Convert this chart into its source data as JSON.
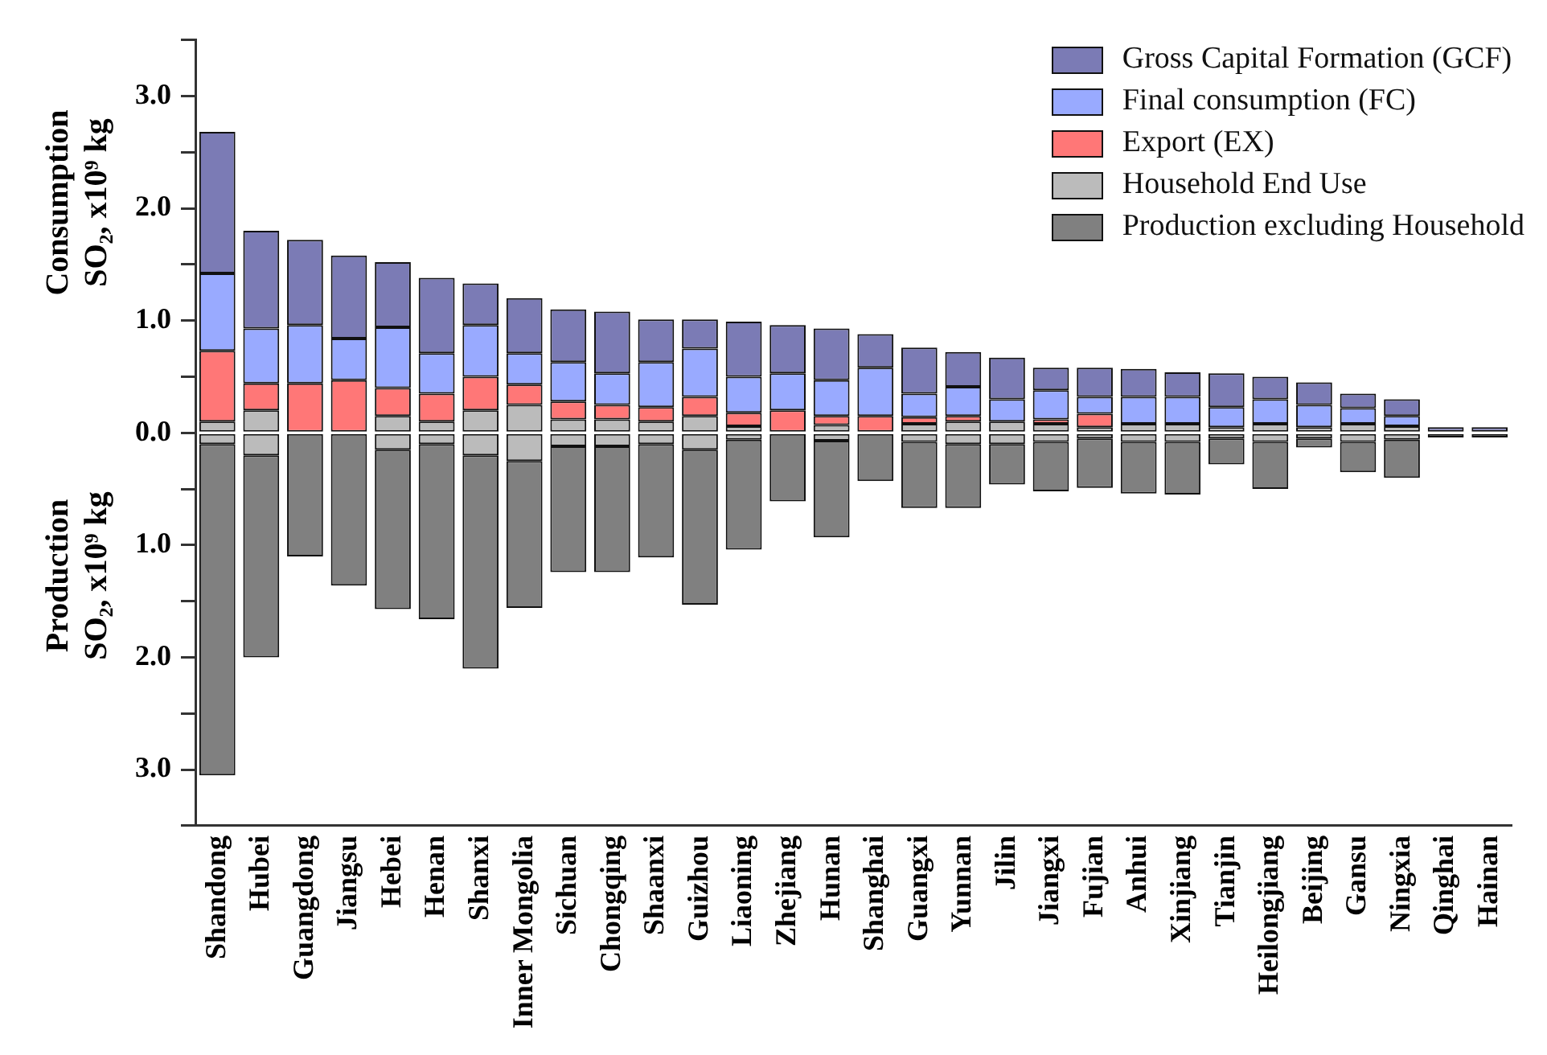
{
  "chart_data": {
    "type": "bar",
    "stacked": true,
    "ylabel": "Consumption\nSO₂, x10⁹ kg",
    "annotations": [
      "Production\nSO₂, x10⁹ kg"
    ],
    "categories": [
      "Shandong",
      "Hubei",
      "Guangdong",
      "Jiangsu",
      "Hebei",
      "Henan",
      "Shanxi",
      "Inner Mongolia",
      "Sichuan",
      "Chongqing",
      "Shaanxi",
      "Guizhou",
      "Liaoning",
      "Zhejiang",
      "Hunan",
      "Shanghai",
      "Guangxi",
      "Yunnan",
      "Jilin",
      "Jiangxi",
      "Fujian",
      "Anhui",
      "Xinjiang",
      "Tianjin",
      "Heilongjiang",
      "Beijing",
      "Gansu",
      "Ningxia",
      "Qinghai",
      "Hainan"
    ],
    "series": [
      {
        "name": "Household End Use",
        "color": "#bbbbbb",
        "values": [
          0.1,
          0.2,
          null,
          null,
          0.15,
          0.1,
          0.2,
          0.25,
          0.12,
          0.12,
          0.1,
          0.15,
          0.06,
          null,
          0.07,
          null,
          0.08,
          0.1,
          0.1,
          0.08,
          0.05,
          0.08,
          0.08,
          0.05,
          0.08,
          0.05,
          0.08,
          0.06,
          null,
          null
        ]
      },
      {
        "name": "Export (EX)",
        "color": "#ff7777",
        "values": [
          0.63,
          0.24,
          0.44,
          0.47,
          0.25,
          0.25,
          0.3,
          0.18,
          0.16,
          0.13,
          0.13,
          0.17,
          0.12,
          0.2,
          0.08,
          0.15,
          0.06,
          0.05,
          null,
          0.04,
          0.12,
          null,
          null,
          null,
          null,
          null,
          null,
          null,
          null,
          null
        ]
      },
      {
        "name": "Final consumption (FC)",
        "color": "#99aaff",
        "values": [
          0.69,
          0.49,
          0.52,
          0.37,
          0.54,
          0.36,
          0.46,
          0.28,
          0.35,
          0.28,
          0.4,
          0.43,
          0.32,
          0.33,
          0.32,
          0.43,
          0.21,
          0.26,
          0.2,
          0.26,
          0.15,
          0.24,
          0.24,
          0.18,
          0.22,
          0.2,
          0.14,
          0.09,
          null,
          null
        ]
      },
      {
        "name": "Gross Capital Formation (GCF)",
        "color": "#7b7bb5",
        "values": [
          1.26,
          0.87,
          0.76,
          0.74,
          0.58,
          0.67,
          0.37,
          0.49,
          0.47,
          0.55,
          0.38,
          0.26,
          0.49,
          0.43,
          0.46,
          0.3,
          0.41,
          0.31,
          0.37,
          0.2,
          0.26,
          0.25,
          0.22,
          0.3,
          0.2,
          0.2,
          0.13,
          0.15,
          0.05,
          0.05
        ]
      },
      {
        "color": "#bbbbbb",
        "values": [
          -0.1,
          -0.2,
          null,
          null,
          -0.15,
          -0.1,
          -0.2,
          -0.25,
          -0.12,
          -0.12,
          -0.1,
          -0.15,
          -0.06,
          null,
          -0.07,
          null,
          -0.08,
          -0.1,
          -0.1,
          -0.08,
          -0.05,
          -0.08,
          -0.08,
          -0.05,
          -0.08,
          -0.05,
          -0.08,
          -0.06,
          null,
          null
        ]
      },
      {
        "name": "Production excluding Household",
        "color": "#808080",
        "values": [
          -2.95,
          -1.8,
          -1.1,
          -1.36,
          -1.42,
          -1.56,
          -1.9,
          -1.31,
          -1.12,
          -1.12,
          -1.01,
          -1.38,
          -0.98,
          -0.61,
          -0.86,
          -0.43,
          -0.59,
          -0.57,
          -0.36,
          -0.44,
          -0.44,
          -0.46,
          -0.47,
          -0.23,
          -0.42,
          -0.08,
          -0.27,
          -0.34,
          -0.04,
          -0.04
        ]
      }
    ],
    "ylim": [
      -3.5,
      3.5
    ],
    "yticks": [
      {
        "value": -3.5,
        "label": null
      },
      {
        "value": -3,
        "label": "3.0"
      },
      {
        "value": -2.5,
        "label": null
      },
      {
        "value": -2,
        "label": "2.0"
      },
      {
        "value": -1.5,
        "label": null
      },
      {
        "value": -1,
        "label": "1.0"
      },
      {
        "value": -0.5,
        "label": null
      },
      {
        "value": 0,
        "label": "0.0"
      },
      {
        "value": 0.5,
        "label": null
      },
      {
        "value": 1,
        "label": "1.0"
      },
      {
        "value": 1.5,
        "label": null
      },
      {
        "value": 2,
        "label": "2.0"
      },
      {
        "value": 2.5,
        "label": null
      },
      {
        "value": 3,
        "label": "3.0"
      },
      {
        "value": 3.5,
        "label": null
      }
    ],
    "grid": false,
    "legend": "top right"
  }
}
